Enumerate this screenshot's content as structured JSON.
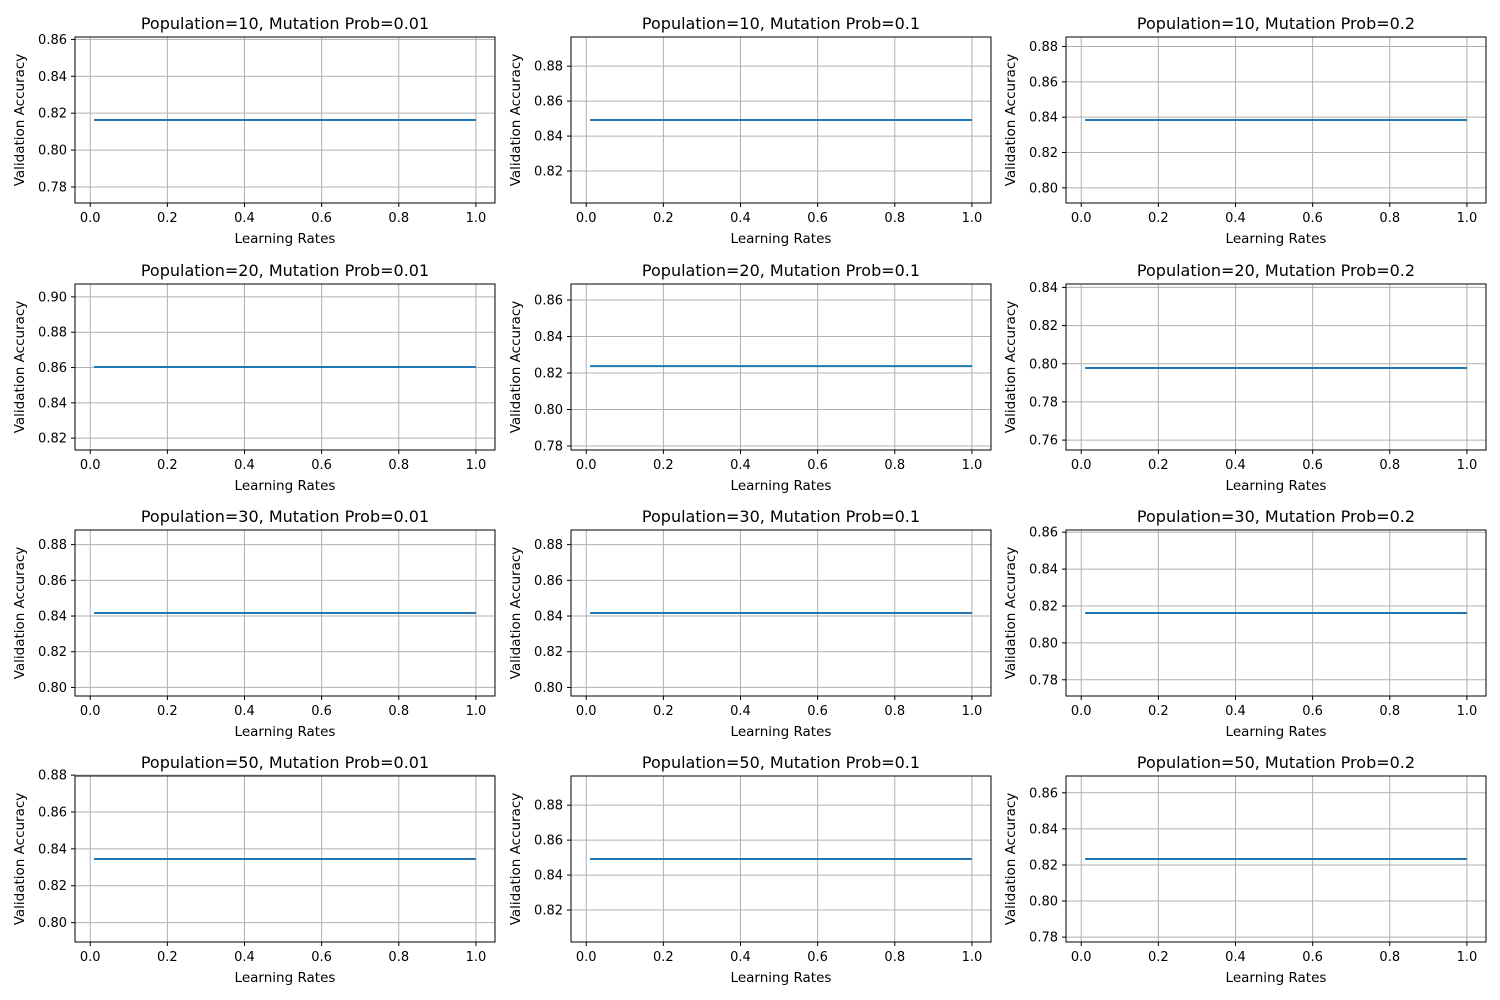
{
  "figure": {
    "xlabel": "Learning Rates",
    "ylabel": "Validation Accuracy",
    "line_color": "#1f77b4",
    "grid": true
  },
  "chart_data": [
    {
      "type": "line",
      "title": "Population=10, Mutation Prob=0.01",
      "xlabel": "Learning Rates",
      "ylabel": "Validation Accuracy",
      "x": [
        0.01,
        1.0
      ],
      "y": [
        0.8163,
        0.8163
      ],
      "xlim": [
        -0.0395,
        1.0495
      ],
      "ylim": [
        0.7713,
        0.8613
      ],
      "xticks": [
        0.0,
        0.2,
        0.4,
        0.6,
        0.8,
        1.0
      ],
      "yticks": [
        0.78,
        0.8,
        0.82,
        0.84,
        0.86
      ]
    },
    {
      "type": "line",
      "title": "Population=10, Mutation Prob=0.1",
      "xlabel": "Learning Rates",
      "ylabel": "Validation Accuracy",
      "x": [
        0.01,
        1.0
      ],
      "y": [
        0.8492,
        0.8492
      ],
      "xlim": [
        -0.0395,
        1.0495
      ],
      "ylim": [
        0.8017,
        0.8967
      ],
      "xticks": [
        0.0,
        0.2,
        0.4,
        0.6,
        0.8,
        1.0
      ],
      "yticks": [
        0.82,
        0.84,
        0.86,
        0.88
      ]
    },
    {
      "type": "line",
      "title": "Population=10, Mutation Prob=0.2",
      "xlabel": "Learning Rates",
      "ylabel": "Validation Accuracy",
      "x": [
        0.01,
        1.0
      ],
      "y": [
        0.8384,
        0.8384
      ],
      "xlim": [
        -0.0395,
        1.0495
      ],
      "ylim": [
        0.7914,
        0.8854
      ],
      "xticks": [
        0.0,
        0.2,
        0.4,
        0.6,
        0.8,
        1.0
      ],
      "yticks": [
        0.8,
        0.82,
        0.84,
        0.86,
        0.88
      ]
    },
    {
      "type": "line",
      "title": "Population=20, Mutation Prob=0.01",
      "xlabel": "Learning Rates",
      "ylabel": "Validation Accuracy",
      "x": [
        0.01,
        1.0
      ],
      "y": [
        0.8603,
        0.8603
      ],
      "xlim": [
        -0.0395,
        1.0495
      ],
      "ylim": [
        0.8133,
        0.9073
      ],
      "xticks": [
        0.0,
        0.2,
        0.4,
        0.6,
        0.8,
        1.0
      ],
      "yticks": [
        0.82,
        0.84,
        0.86,
        0.88,
        0.9
      ]
    },
    {
      "type": "line",
      "title": "Population=20, Mutation Prob=0.1",
      "xlabel": "Learning Rates",
      "ylabel": "Validation Accuracy",
      "x": [
        0.01,
        1.0
      ],
      "y": [
        0.8238,
        0.8238
      ],
      "xlim": [
        -0.0395,
        1.0495
      ],
      "ylim": [
        0.7778,
        0.8688
      ],
      "xticks": [
        0.0,
        0.2,
        0.4,
        0.6,
        0.8,
        1.0
      ],
      "yticks": [
        0.78,
        0.8,
        0.82,
        0.84,
        0.86
      ]
    },
    {
      "type": "line",
      "title": "Population=20, Mutation Prob=0.2",
      "xlabel": "Learning Rates",
      "ylabel": "Validation Accuracy",
      "x": [
        0.01,
        1.0
      ],
      "y": [
        0.7978,
        0.7978
      ],
      "xlim": [
        -0.0395,
        1.0495
      ],
      "ylim": [
        0.7548,
        0.8418
      ],
      "xticks": [
        0.0,
        0.2,
        0.4,
        0.6,
        0.8,
        1.0
      ],
      "yticks": [
        0.76,
        0.78,
        0.8,
        0.82,
        0.84
      ]
    },
    {
      "type": "line",
      "title": "Population=30, Mutation Prob=0.01",
      "xlabel": "Learning Rates",
      "ylabel": "Validation Accuracy",
      "x": [
        0.01,
        1.0
      ],
      "y": [
        0.8417,
        0.8417
      ],
      "xlim": [
        -0.0395,
        1.0495
      ],
      "ylim": [
        0.7952,
        0.8882
      ],
      "xticks": [
        0.0,
        0.2,
        0.4,
        0.6,
        0.8,
        1.0
      ],
      "yticks": [
        0.8,
        0.82,
        0.84,
        0.86,
        0.88
      ]
    },
    {
      "type": "line",
      "title": "Population=30, Mutation Prob=0.1",
      "xlabel": "Learning Rates",
      "ylabel": "Validation Accuracy",
      "x": [
        0.01,
        1.0
      ],
      "y": [
        0.8417,
        0.8417
      ],
      "xlim": [
        -0.0395,
        1.0495
      ],
      "ylim": [
        0.7952,
        0.8882
      ],
      "xticks": [
        0.0,
        0.2,
        0.4,
        0.6,
        0.8,
        1.0
      ],
      "yticks": [
        0.8,
        0.82,
        0.84,
        0.86,
        0.88
      ]
    },
    {
      "type": "line",
      "title": "Population=30, Mutation Prob=0.2",
      "xlabel": "Learning Rates",
      "ylabel": "Validation Accuracy",
      "x": [
        0.01,
        1.0
      ],
      "y": [
        0.8162,
        0.8162
      ],
      "xlim": [
        -0.0395,
        1.0495
      ],
      "ylim": [
        0.7712,
        0.8612
      ],
      "xticks": [
        0.0,
        0.2,
        0.4,
        0.6,
        0.8,
        1.0
      ],
      "yticks": [
        0.78,
        0.8,
        0.82,
        0.84,
        0.86
      ]
    },
    {
      "type": "line",
      "title": "Population=50, Mutation Prob=0.01",
      "xlabel": "Learning Rates",
      "ylabel": "Validation Accuracy",
      "x": [
        0.01,
        1.0
      ],
      "y": [
        0.8345,
        0.8345
      ],
      "xlim": [
        -0.0395,
        1.0495
      ],
      "ylim": [
        0.7895,
        0.8795
      ],
      "xticks": [
        0.0,
        0.2,
        0.4,
        0.6,
        0.8,
        1.0
      ],
      "yticks": [
        0.8,
        0.82,
        0.84,
        0.86,
        0.88
      ]
    },
    {
      "type": "line",
      "title": "Population=50, Mutation Prob=0.1",
      "xlabel": "Learning Rates",
      "ylabel": "Validation Accuracy",
      "x": [
        0.01,
        1.0
      ],
      "y": [
        0.8492,
        0.8492
      ],
      "xlim": [
        -0.0395,
        1.0495
      ],
      "ylim": [
        0.8017,
        0.8967
      ],
      "xticks": [
        0.0,
        0.2,
        0.4,
        0.6,
        0.8,
        1.0
      ],
      "yticks": [
        0.82,
        0.84,
        0.86,
        0.88
      ]
    },
    {
      "type": "line",
      "title": "Population=50, Mutation Prob=0.2",
      "xlabel": "Learning Rates",
      "ylabel": "Validation Accuracy",
      "x": [
        0.01,
        1.0
      ],
      "y": [
        0.8233,
        0.8233
      ],
      "xlim": [
        -0.0395,
        1.0495
      ],
      "ylim": [
        0.7773,
        0.8693
      ],
      "xticks": [
        0.0,
        0.2,
        0.4,
        0.6,
        0.8,
        1.0
      ],
      "yticks": [
        0.78,
        0.8,
        0.82,
        0.84,
        0.86
      ]
    }
  ]
}
